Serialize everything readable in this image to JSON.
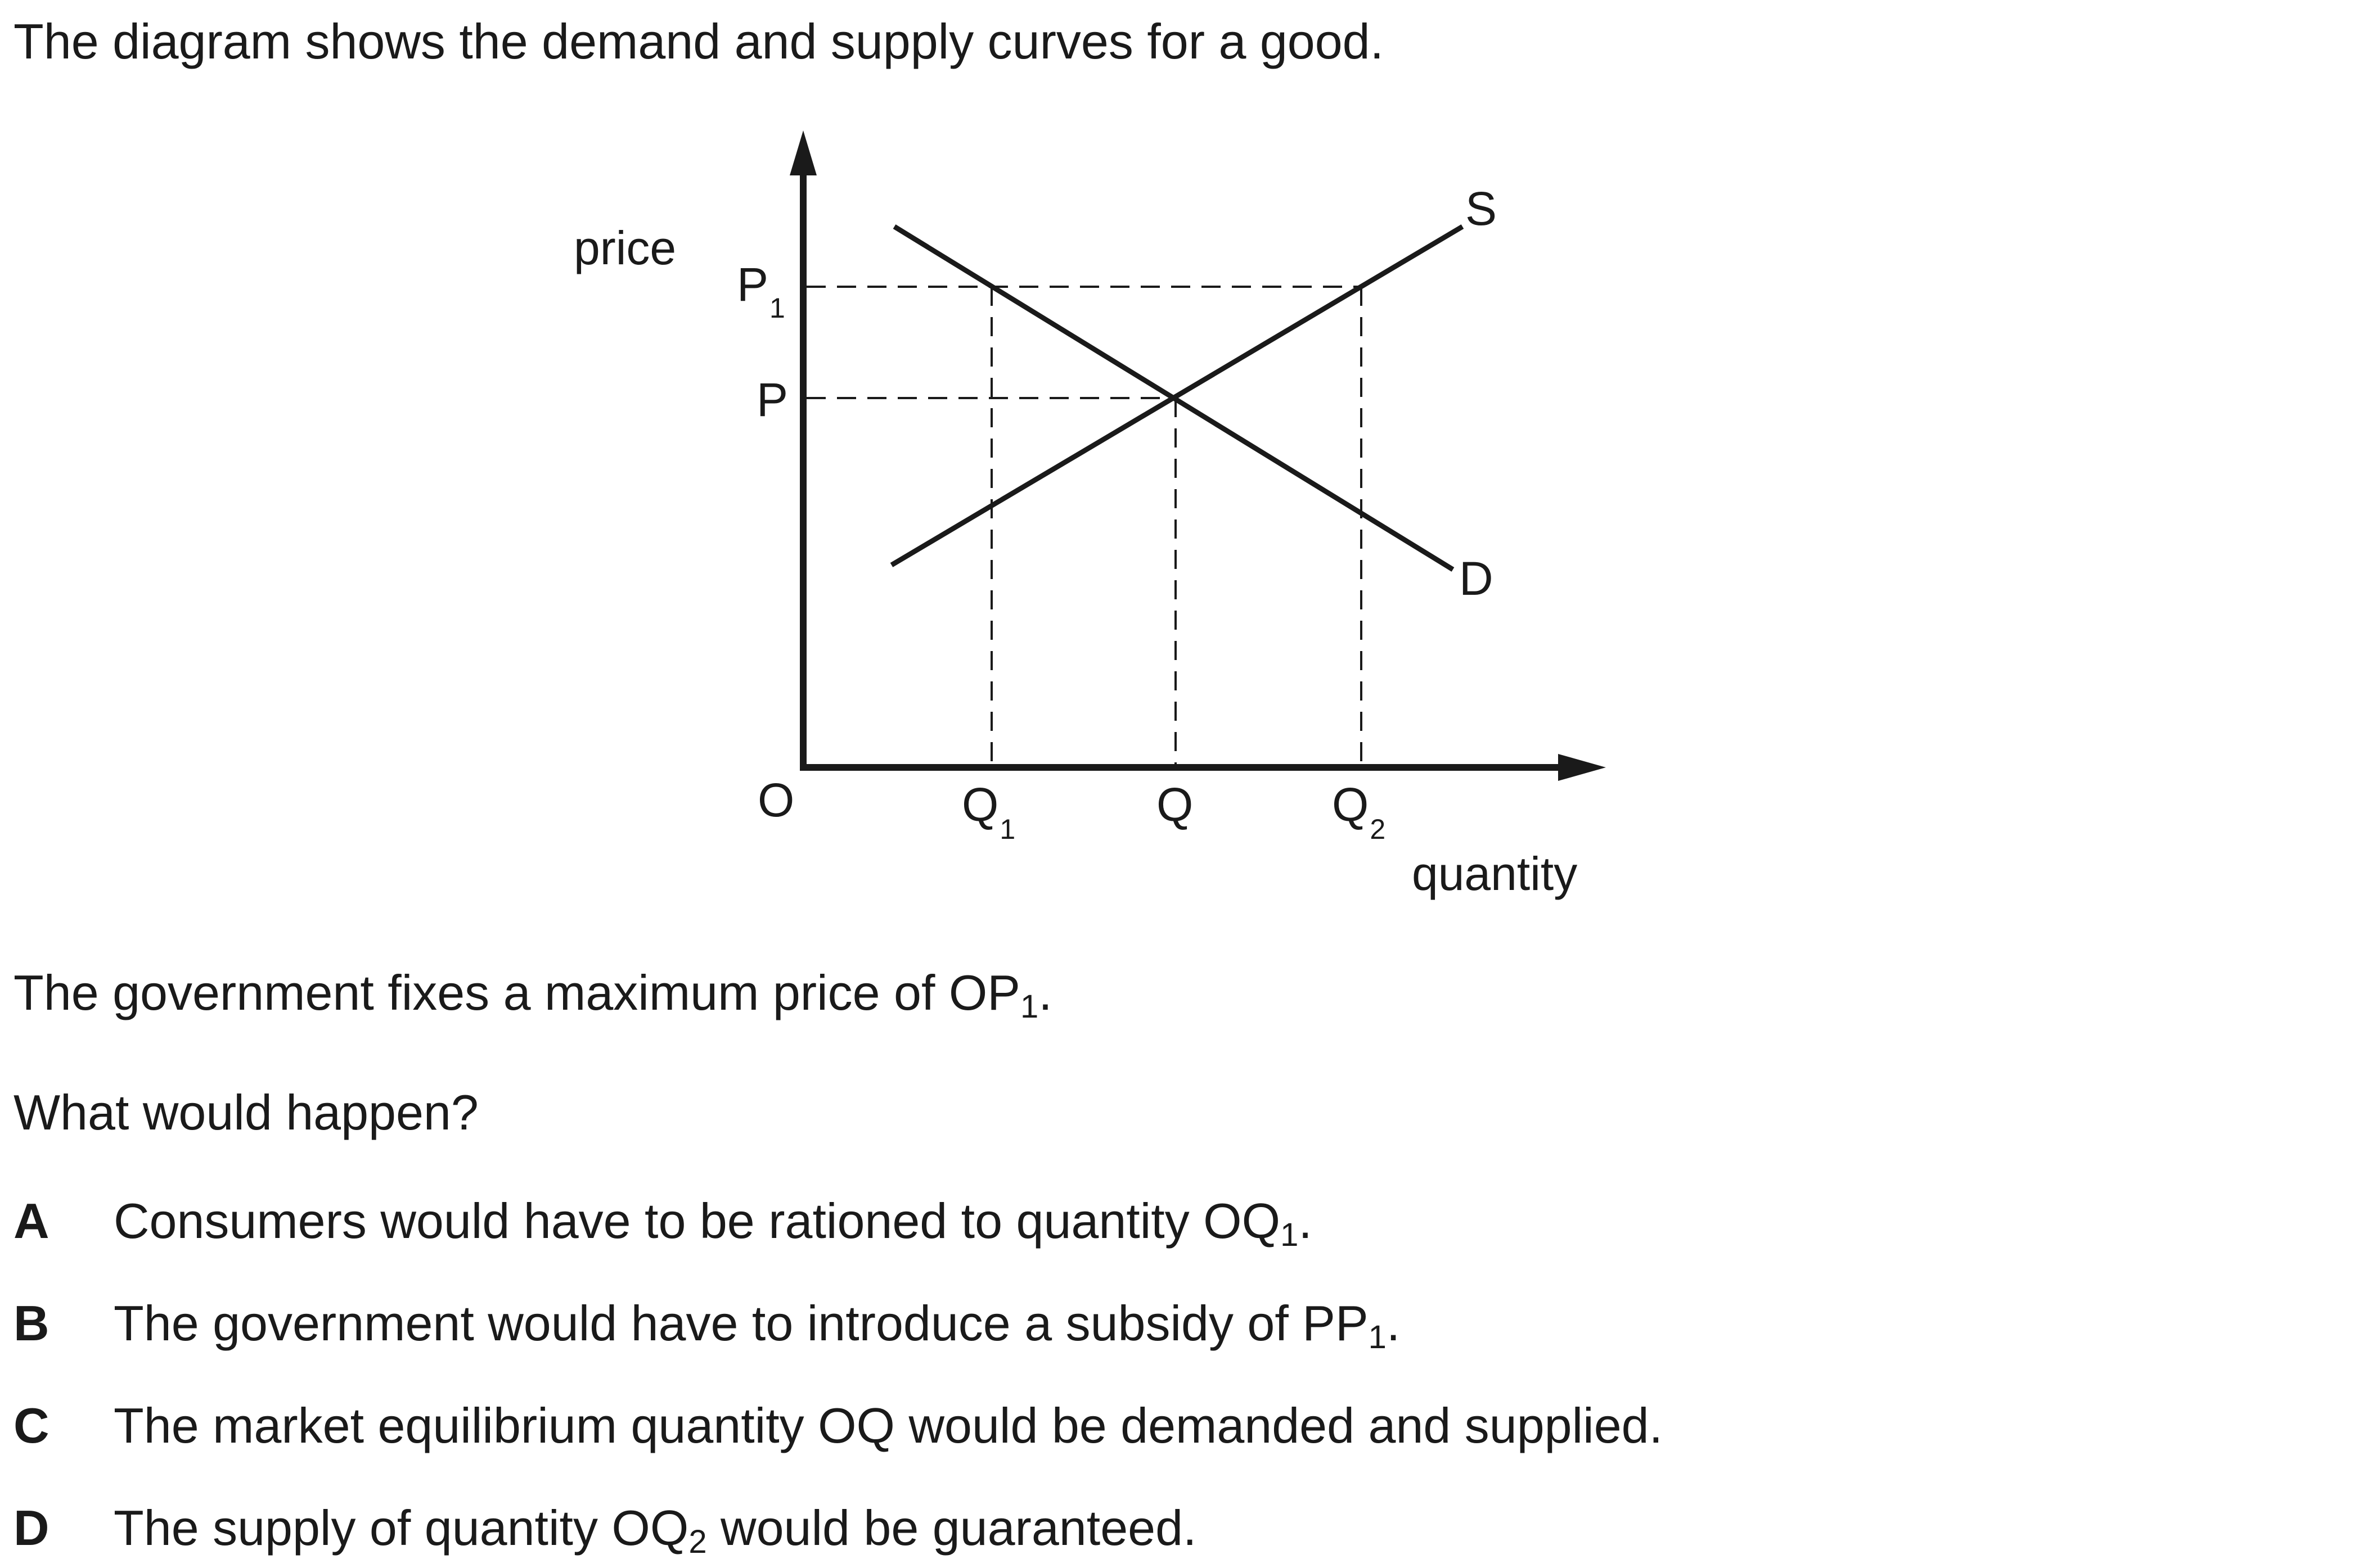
{
  "intro": "The diagram shows the demand and supply curves for a good.",
  "diagram": {
    "y_axis_label": "price",
    "x_axis_label": "quantity",
    "origin_label": "O",
    "price_labels": {
      "p1_main": "P",
      "p1_sub": "1",
      "p": "P"
    },
    "quantity_labels": {
      "q1_main": "Q",
      "q1_sub": "1",
      "q": "Q",
      "q2_main": "Q",
      "q2_sub": "2"
    },
    "curve_labels": {
      "supply": "S",
      "demand": "D"
    }
  },
  "statement": {
    "main": "The government fixes a maximum price of OP",
    "sub": "1",
    "end": "."
  },
  "question": "What would happen?",
  "options": [
    {
      "letter": "A",
      "main": "Consumers would have to be rationed to quantity OQ",
      "sub": "1",
      "end": "."
    },
    {
      "letter": "B",
      "main": "The government would have to introduce a subsidy of PP",
      "sub": "1",
      "end": "."
    },
    {
      "letter": "C",
      "main": "The market equilibrium quantity OQ would be demanded and supplied.",
      "sub": "",
      "end": ""
    },
    {
      "letter": "D",
      "main": "The supply of quantity OQ",
      "sub": "2",
      "end": " would be guaranteed."
    }
  ]
}
